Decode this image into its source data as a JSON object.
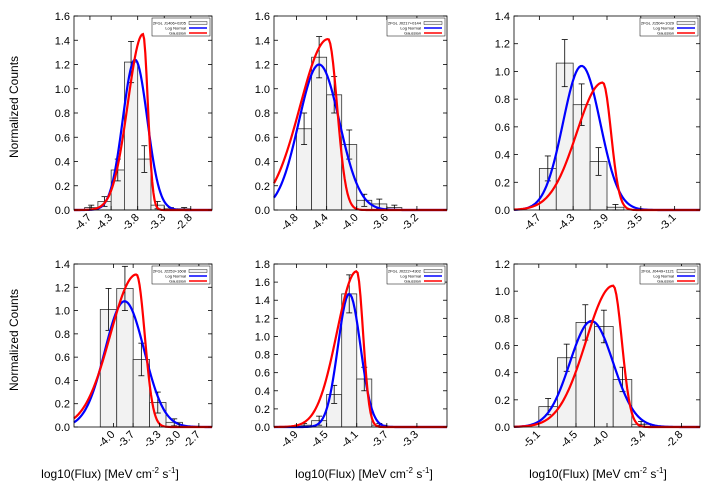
{
  "figure": {
    "ylabel": "Normalized Counts",
    "xlabel": {
      "prefix": "log10(Flux) [MeV cm",
      "exp1": "-2",
      "mid": " s",
      "exp2": "-1",
      "suffix": "]"
    }
  },
  "legend_labels": {
    "lognormal": "Log Normal",
    "gaussian": "Gaussian"
  },
  "colors": {
    "lognormal": "#0000ff",
    "gaussian": "#ff0000",
    "bar_fill": "#f2f2f2",
    "bar_stroke": "#333333"
  },
  "chart_data": [
    {
      "type": "bar",
      "legend_title": "2FGL J1406+0205",
      "xlim": [
        -5.0,
        -2.4
      ],
      "ylim": [
        0,
        1.6
      ],
      "yticks": [
        0.0,
        0.2,
        0.4,
        0.6,
        0.8,
        1.0,
        1.2,
        1.4,
        1.6
      ],
      "xticks": [
        "-4.7",
        "-4.3",
        "-3.8",
        "-3.3",
        "-2.8"
      ],
      "xtick_values": [
        -4.7,
        -4.3,
        -3.8,
        -3.3,
        -2.8
      ],
      "bin_edges": [
        -4.8,
        -4.55,
        -4.3,
        -4.05,
        -3.8,
        -3.55,
        -3.3,
        -3.05,
        -2.8
      ],
      "values": [
        0.02,
        0.07,
        0.33,
        1.22,
        0.42,
        0.04,
        0.01,
        0.01
      ],
      "errors": [
        0.02,
        0.04,
        0.09,
        0.17,
        0.11,
        0.03,
        0.01,
        0.01
      ],
      "lognormal": {
        "mu": -3.85,
        "sigma": 0.23,
        "amp": 1.24
      },
      "gaussian": {
        "mu": -3.7,
        "sigma": 0.13,
        "amp": 1.45
      }
    },
    {
      "type": "bar",
      "legend_title": "2FGL J0217+0144",
      "xlim": [
        -5.1,
        -2.8
      ],
      "ylim": [
        0,
        1.6
      ],
      "yticks": [
        0.0,
        0.2,
        0.4,
        0.6,
        0.8,
        1.0,
        1.2,
        1.4,
        1.6
      ],
      "xticks": [
        "-4.8",
        "-4.4",
        "-4.0",
        "-3.6",
        "-3.2"
      ],
      "xtick_values": [
        -4.8,
        -4.4,
        -4.0,
        -3.6,
        -3.2
      ],
      "bin_edges": [
        -4.8,
        -4.6,
        -4.4,
        -4.2,
        -4.0,
        -3.8,
        -3.6,
        -3.4,
        -3.2
      ],
      "values": [
        0.67,
        1.26,
        0.95,
        0.54,
        0.08,
        0.05,
        0.02,
        0.0
      ],
      "errors": [
        0.13,
        0.17,
        0.15,
        0.12,
        0.05,
        0.04,
        0.02,
        0.0
      ],
      "lognormal": {
        "mu": -4.5,
        "sigma": 0.27,
        "amp": 1.2
      },
      "gaussian": {
        "mu": -4.38,
        "sigma": 0.17,
        "amp": 1.41
      }
    },
    {
      "type": "bar",
      "legend_title": "2FGL J1504+1029",
      "xlim": [
        -5.0,
        -2.8
      ],
      "ylim": [
        0,
        1.4
      ],
      "yticks": [
        0.0,
        0.2,
        0.4,
        0.6,
        0.8,
        1.0,
        1.2,
        1.4
      ],
      "xticks": [
        "-4.7",
        "-4.3",
        "-3.9",
        "-3.5",
        "-3.1"
      ],
      "xtick_values": [
        -4.7,
        -4.3,
        -3.9,
        -3.5,
        -3.1
      ],
      "bin_edges": [
        -4.7,
        -4.5,
        -4.3,
        -4.1,
        -3.9,
        -3.7,
        -3.5,
        -3.3,
        -3.1
      ],
      "values": [
        0.3,
        1.06,
        0.76,
        0.35,
        0.02,
        0.0,
        0.0,
        0.0
      ],
      "errors": [
        0.09,
        0.17,
        0.15,
        0.1,
        0.02,
        0.0,
        0.0,
        0.0
      ],
      "lognormal": {
        "mu": -4.2,
        "sigma": 0.22,
        "amp": 1.04
      },
      "gaussian": {
        "mu": -3.95,
        "sigma": 0.14,
        "amp": 0.92
      }
    },
    {
      "type": "bar",
      "legend_title": "2FGL J2253+1608",
      "xlim": [
        -4.6,
        -2.5
      ],
      "ylim": [
        0,
        1.4
      ],
      "yticks": [
        0.0,
        0.2,
        0.4,
        0.6,
        0.8,
        1.0,
        1.2,
        1.4
      ],
      "xticks": [
        "-4.0",
        "-3.7",
        "-3.3",
        "-3.0",
        "-2.7"
      ],
      "xtick_values": [
        -4.0,
        -3.7,
        -3.3,
        -3.0,
        -2.7
      ],
      "bin_edges": [
        -4.2,
        -3.95,
        -3.7,
        -3.45,
        -3.2,
        -2.95,
        -2.7
      ],
      "values": [
        1.01,
        1.19,
        0.58,
        0.21,
        0.04,
        0.0
      ],
      "errors": [
        0.18,
        0.19,
        0.14,
        0.09,
        0.03,
        0.0
      ],
      "lognormal": {
        "mu": -3.83,
        "sigma": 0.3,
        "amp": 1.08
      },
      "gaussian": {
        "mu": -3.65,
        "sigma": 0.18,
        "amp": 1.31
      }
    },
    {
      "type": "bar",
      "legend_title": "2FGL J0222+4302",
      "xlim": [
        -5.2,
        -2.9
      ],
      "ylim": [
        0,
        1.8
      ],
      "yticks": [
        0.0,
        0.2,
        0.4,
        0.6,
        0.8,
        1.0,
        1.2,
        1.4,
        1.6,
        1.8
      ],
      "xticks": [
        "-4.9",
        "-4.5",
        "-4.1",
        "-3.7",
        "-3.3"
      ],
      "xtick_values": [
        -4.9,
        -4.5,
        -4.1,
        -3.7,
        -3.3
      ],
      "bin_edges": [
        -4.9,
        -4.7,
        -4.5,
        -4.3,
        -4.1,
        -3.9,
        -3.7,
        -3.5,
        -3.3
      ],
      "values": [
        0.02,
        0.07,
        0.36,
        1.47,
        0.53,
        0.02,
        0.0,
        0.0
      ],
      "errors": [
        0.02,
        0.05,
        0.1,
        0.21,
        0.13,
        0.02,
        0.0,
        0.0
      ],
      "lognormal": {
        "mu": -4.2,
        "sigma": 0.15,
        "amp": 1.47
      },
      "gaussian": {
        "mu": -4.1,
        "sigma": 0.12,
        "amp": 1.72
      }
    },
    {
      "type": "bar",
      "legend_title": "2FGL J0449+1121",
      "xlim": [
        -5.5,
        -2.5
      ],
      "ylim": [
        0,
        1.2
      ],
      "yticks": [
        0.0,
        0.2,
        0.4,
        0.6,
        0.8,
        1.0,
        1.2
      ],
      "xticks": [
        "-5.1",
        "-4.5",
        "-4.0",
        "-3.4",
        "-2.8"
      ],
      "xtick_values": [
        -5.1,
        -4.5,
        -4.0,
        -3.4,
        -2.8
      ],
      "bin_edges": [
        -5.1,
        -4.8,
        -4.5,
        -4.2,
        -3.9,
        -3.6,
        -3.3,
        -3.0
      ],
      "values": [
        0.15,
        0.51,
        0.77,
        0.74,
        0.35,
        0.02,
        0.0
      ],
      "errors": [
        0.06,
        0.1,
        0.13,
        0.12,
        0.09,
        0.02,
        0.0
      ],
      "lognormal": {
        "mu": -4.25,
        "sigma": 0.35,
        "amp": 0.78
      },
      "gaussian": {
        "mu": -3.9,
        "sigma": 0.2,
        "amp": 1.04
      }
    }
  ]
}
